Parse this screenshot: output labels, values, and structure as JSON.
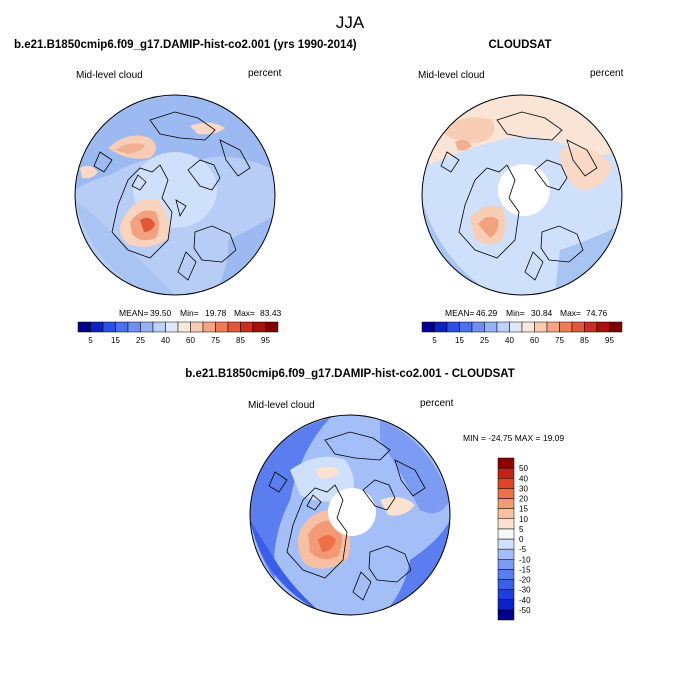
{
  "chart_data": [
    {
      "type": "heatmap",
      "projection": "north-polar-stereographic",
      "title": "b.e21.B1850cmip6.f09_g17.DAMIP-hist-co2.001 (yrs 1990-2014)",
      "variable": "Mid-level cloud",
      "units": "percent",
      "stats": {
        "mean_label": "MEAN=",
        "mean": "39.50",
        "min_label": "Min=",
        "min": "19.78",
        "max_label": "Max=",
        "max": "83.43"
      },
      "colorbar": {
        "orientation": "horizontal",
        "tick_labels": [
          "5",
          "15",
          "25",
          "40",
          "60",
          "75",
          "85",
          "95"
        ],
        "colors": [
          "#00008f",
          "#0a22c8",
          "#2a4ee8",
          "#4a70ef",
          "#6f90f2",
          "#96b2f5",
          "#bcd0f8",
          "#dde9fb",
          "#fbe8dc",
          "#f9cbb0",
          "#f5a583",
          "#ef7b5a",
          "#e4553a",
          "#cb2d1e",
          "#a80f0f",
          "#800000"
        ]
      }
    },
    {
      "type": "heatmap",
      "projection": "north-polar-stereographic",
      "title": "CLOUDSAT",
      "variable": "Mid-level cloud",
      "units": "percent",
      "stats": {
        "mean_label": "MEAN=",
        "mean": "46.29",
        "min_label": "Min=",
        "min": "30.84",
        "max_label": "Max=",
        "max": "74.76"
      },
      "colorbar": {
        "orientation": "horizontal",
        "tick_labels": [
          "5",
          "15",
          "25",
          "40",
          "60",
          "75",
          "85",
          "95"
        ],
        "colors": [
          "#00008f",
          "#0a22c8",
          "#2a4ee8",
          "#4a70ef",
          "#6f90f2",
          "#96b2f5",
          "#bcd0f8",
          "#dde9fb",
          "#fbe8dc",
          "#f9cbb0",
          "#f5a583",
          "#ef7b5a",
          "#e4553a",
          "#cb2d1e",
          "#a80f0f",
          "#800000"
        ]
      }
    },
    {
      "type": "heatmap",
      "projection": "north-polar-stereographic",
      "title": "b.e21.B1850cmip6.f09_g17.DAMIP-hist-co2.001 - CLOUDSAT",
      "variable": "Mid-level cloud",
      "units": "percent",
      "stats_text": "MIN = -24.75 MAX = 19.09",
      "colorbar": {
        "orientation": "vertical",
        "tick_labels": [
          "-50",
          "-40",
          "-30",
          "-20",
          "-15",
          "-10",
          "-5",
          "0",
          "5",
          "10",
          "15",
          "20",
          "30",
          "40",
          "50"
        ],
        "colors": [
          "#00008f",
          "#0a22c8",
          "#1f3ee0",
          "#3a5ee9",
          "#5a7ef0",
          "#7c9cf3",
          "#a4bef7",
          "#cfe0fa",
          "#f7f7f7",
          "#fbe1d0",
          "#f8c0a2",
          "#f39a75",
          "#ec7049",
          "#df4526",
          "#c42214",
          "#8f0000"
        ]
      }
    }
  ],
  "figure": {
    "season": "JJA"
  }
}
